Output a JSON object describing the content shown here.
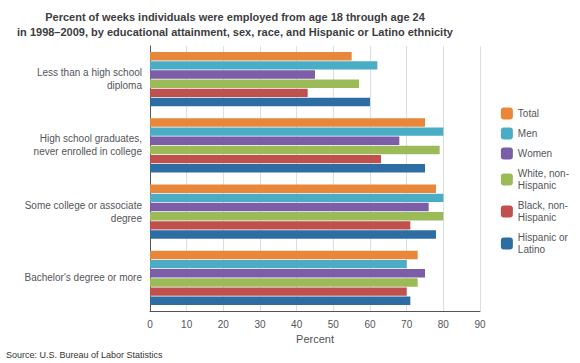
{
  "chart_data": {
    "type": "bar",
    "orientation": "horizontal",
    "title": "Percent of weeks individuals were employed from age 18 through age 24\nin 1998–2009, by educational attainment, sex, race, and Hispanic or Latino ethnicity",
    "categories": [
      "Less than a high school\ndiploma",
      "High school graduates,\nnever enrolled in college",
      "Some college or associate\ndegree",
      "Bachelor's degree or more"
    ],
    "series": [
      {
        "name": "Total",
        "color": "#E8873A",
        "values": [
          55,
          75,
          78,
          73
        ]
      },
      {
        "name": "Men",
        "color": "#4BACC6",
        "values": [
          62,
          80,
          80,
          70
        ]
      },
      {
        "name": "Women",
        "color": "#7B5EA7",
        "values": [
          45,
          68,
          76,
          75
        ]
      },
      {
        "name": "White, non-\nHispanic",
        "color": "#9BBB59",
        "values": [
          57,
          79,
          80,
          73
        ]
      },
      {
        "name": "Black, non-\nHispanic",
        "color": "#C0504D",
        "values": [
          43,
          63,
          71,
          70
        ]
      },
      {
        "name": "Hispanic or\nLatino",
        "color": "#2E6DA4",
        "values": [
          60,
          75,
          78,
          71
        ]
      }
    ],
    "xlabel": "Percent",
    "xlim": [
      0,
      90
    ],
    "xticks": [
      0,
      10,
      20,
      30,
      40,
      50,
      60,
      70,
      80,
      90
    ],
    "grid": true,
    "legend": "right",
    "annotations": [
      "Source: U.S. Bureau of Labor Statistics"
    ]
  }
}
